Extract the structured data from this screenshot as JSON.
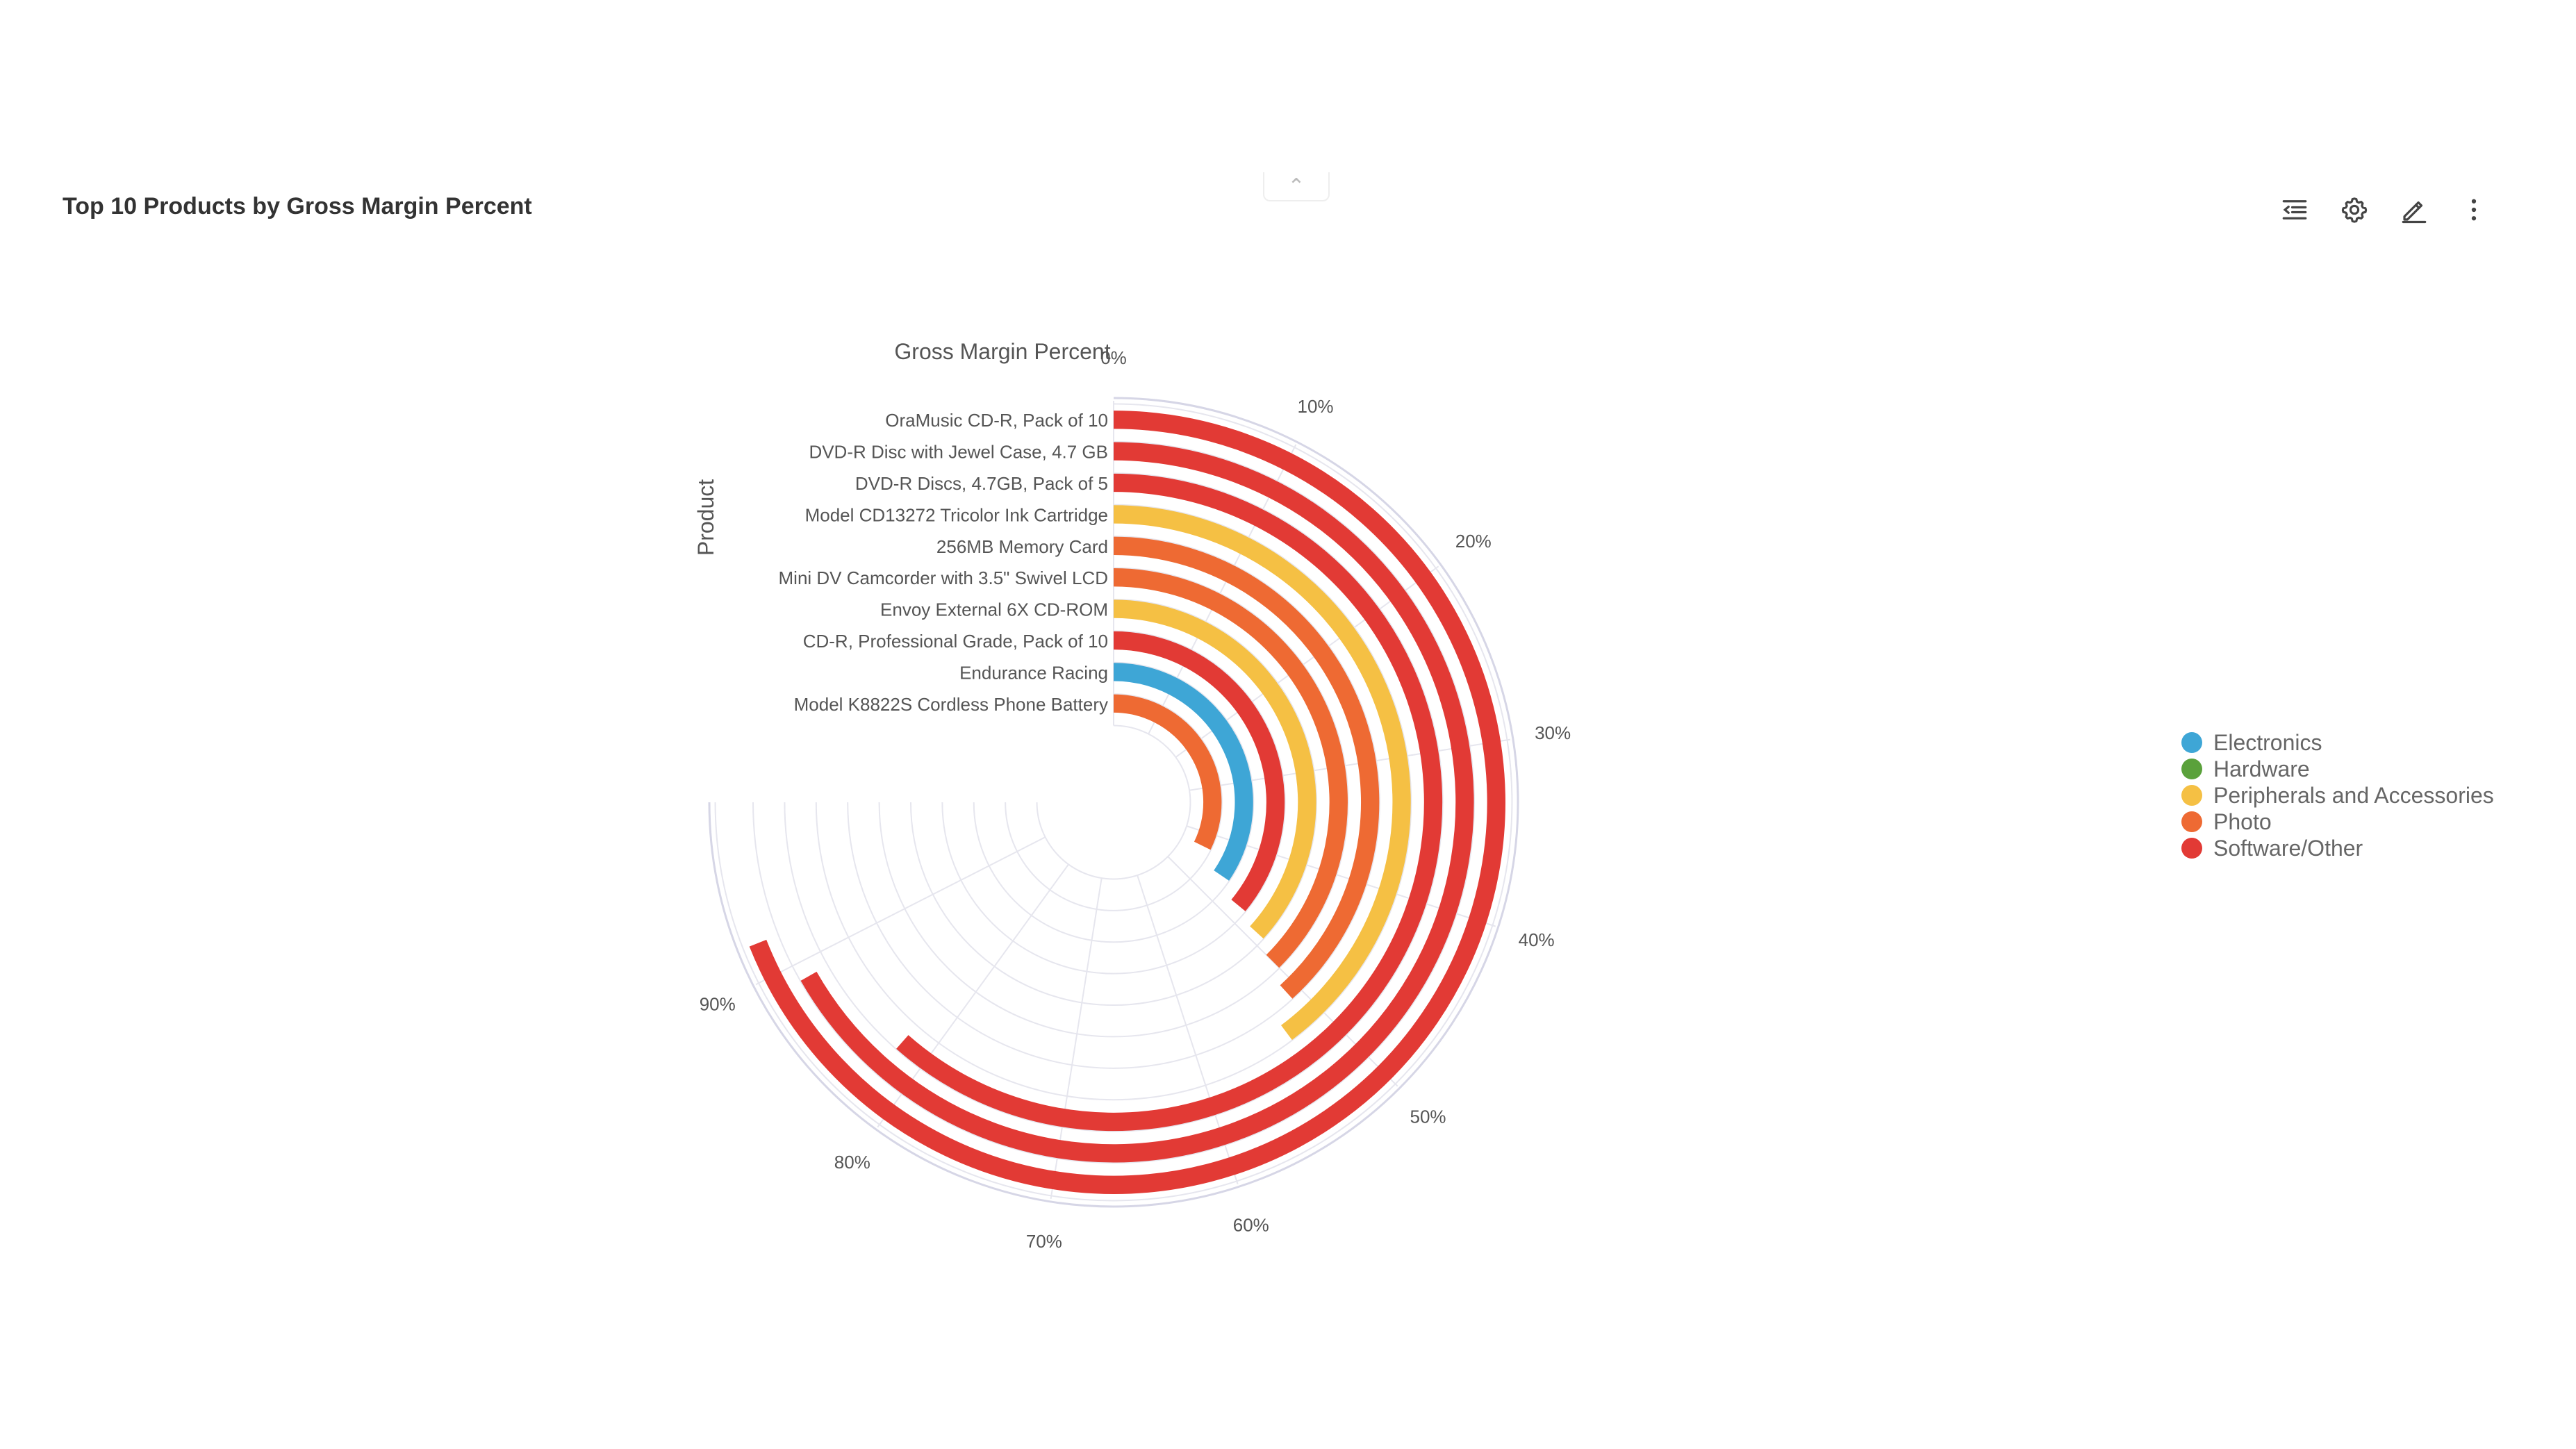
{
  "panel": {
    "title": "Top 10 Products by Gross Margin Percent",
    "collapse_glyph": "⌃"
  },
  "toolbar": [
    {
      "name": "list-indent-icon",
      "label": "Indent"
    },
    {
      "name": "gear-icon",
      "label": "Settings"
    },
    {
      "name": "pencil-icon",
      "label": "Edit"
    },
    {
      "name": "more-vertical-icon",
      "label": "More"
    }
  ],
  "legend": [
    {
      "label": "Electronics",
      "color": "#3ea6d6"
    },
    {
      "label": "Hardware",
      "color": "#5aa13b"
    },
    {
      "label": "Peripherals and Accessories",
      "color": "#f5c044"
    },
    {
      "label": "Photo",
      "color": "#ee6a33"
    },
    {
      "label": "Software/Other",
      "color": "#e23a35"
    }
  ],
  "chart_data": {
    "type": "bar",
    "variant": "radial",
    "title": "Gross Margin Percent",
    "ylabel": "Product",
    "xlim": [
      0,
      100
    ],
    "x_ticks": [
      "0%",
      "10%",
      "20%",
      "30%",
      "40%",
      "50%",
      "60%",
      "70%",
      "80%",
      "90%"
    ],
    "categories": [
      "OraMusic CD-R, Pack of 10",
      "DVD-R Disc with Jewel Case, 4.7 GB",
      "DVD-R Discs, 4.7GB, Pack of 5",
      "Model CD13272 Tricolor Ink Cartridge",
      "256MB Memory Card",
      "Mini DV Camcorder with 3.5\" Swivel LCD",
      "Envoy External 6X CD-ROM",
      "CD-R, Professional Grade, Pack of 10",
      "Endurance Racing",
      "Model K8822S Cordless Phone Battery"
    ],
    "values": [
      92,
      89,
      82,
      53,
      51,
      50,
      49,
      48,
      46,
      43
    ],
    "category_groups": [
      "Software/Other",
      "Software/Other",
      "Software/Other",
      "Peripherals and Accessories",
      "Photo",
      "Photo",
      "Peripherals and Accessories",
      "Software/Other",
      "Electronics",
      "Photo"
    ],
    "grid": true,
    "legend_position": "right"
  }
}
